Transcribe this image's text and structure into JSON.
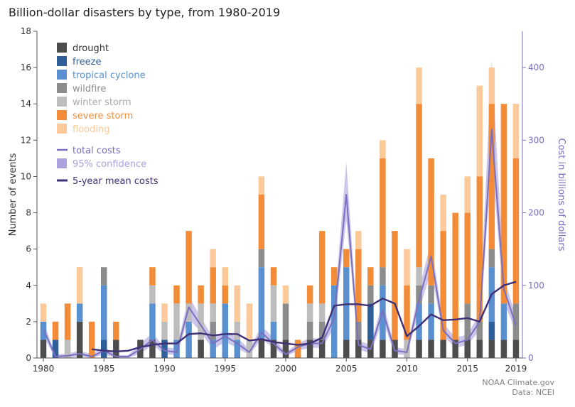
{
  "chart_data": {
    "type": "bar",
    "stacked": true,
    "title": "Billion-dollar disasters by type, from 1980-2019",
    "x_tick_labels": [
      "1980",
      "1985",
      "1990",
      "1995",
      "2000",
      "2005",
      "2010",
      "2015",
      "2019"
    ],
    "y_left": {
      "label": "Number of events",
      "range": [
        0,
        18
      ],
      "ticks": [
        "0",
        "2",
        "4",
        "6",
        "8",
        "10",
        "12",
        "14",
        "16",
        "18"
      ]
    },
    "y_right": {
      "label": "Cost in billions of dollars",
      "range": [
        0,
        450
      ],
      "ticks": [
        "0",
        "100",
        "200",
        "300",
        "400"
      ]
    },
    "legend_position": "top-left",
    "grid": false,
    "years": [
      1980,
      1981,
      1982,
      1983,
      1984,
      1985,
      1986,
      1987,
      1988,
      1989,
      1990,
      1991,
      1992,
      1993,
      1994,
      1995,
      1996,
      1997,
      1998,
      1999,
      2000,
      2001,
      2002,
      2003,
      2004,
      2005,
      2006,
      2007,
      2008,
      2009,
      2010,
      2011,
      2012,
      2013,
      2014,
      2015,
      2016,
      2017,
      2018,
      2019
    ],
    "series": [
      {
        "name": "drought",
        "color": "#4d4d4d",
        "values": [
          1,
          0,
          0,
          2,
          0,
          0,
          1,
          0,
          1,
          1,
          0,
          0,
          0,
          1,
          0,
          0,
          0,
          0,
          1,
          1,
          1,
          0,
          1,
          1,
          0,
          1,
          1,
          1,
          1,
          1,
          0,
          1,
          1,
          1,
          1,
          1,
          1,
          1,
          1,
          1
        ]
      },
      {
        "name": "freeze",
        "color": "#2e5f99",
        "values": [
          0,
          1,
          0,
          0,
          0,
          1,
          0,
          0,
          0,
          0,
          1,
          0,
          0,
          0,
          0,
          0,
          0,
          0,
          0,
          0,
          0,
          0,
          0,
          0,
          0,
          0,
          0,
          2,
          0,
          0,
          0,
          0,
          0,
          0,
          0,
          0,
          0,
          1,
          0,
          0
        ]
      },
      {
        "name": "tropical cyclone",
        "color": "#5a90cf",
        "values": [
          1,
          0,
          0,
          1,
          0,
          3,
          0,
          0,
          0,
          2,
          0,
          1,
          2,
          0,
          1,
          3,
          1,
          0,
          4,
          1,
          0,
          0,
          0,
          0,
          4,
          4,
          0,
          0,
          3,
          0,
          0,
          2,
          2,
          0,
          0,
          0,
          0,
          3,
          2,
          0
        ]
      },
      {
        "name": "wildfire",
        "color": "#8c8c8c",
        "values": [
          0,
          0,
          0,
          0,
          0,
          1,
          0,
          0,
          0,
          0,
          0,
          0,
          0,
          0,
          1,
          0,
          0,
          0,
          1,
          0,
          2,
          0,
          1,
          1,
          0,
          0,
          1,
          1,
          1,
          0,
          0,
          1,
          1,
          0,
          0,
          2,
          1,
          1,
          0,
          2
        ]
      },
      {
        "name": "winter storm",
        "color": "#bdbdbd",
        "values": [
          0,
          0,
          1,
          0,
          0,
          0,
          0,
          0,
          0,
          1,
          1,
          2,
          1,
          2,
          1,
          0,
          1,
          1,
          0,
          2,
          0,
          0,
          1,
          1,
          0,
          0,
          0,
          0,
          0,
          0,
          1,
          1,
          0,
          0,
          0,
          0,
          0,
          0,
          0,
          0
        ]
      },
      {
        "name": "severe storm",
        "color": "#f28c38",
        "values": [
          0,
          1,
          2,
          0,
          2,
          0,
          1,
          0,
          0,
          1,
          0,
          1,
          4,
          1,
          2,
          1,
          0,
          0,
          3,
          1,
          0,
          1,
          1,
          4,
          1,
          1,
          4,
          1,
          6,
          6,
          3,
          9,
          7,
          6,
          7,
          5,
          8,
          8,
          11,
          8
        ]
      },
      {
        "name": "flooding",
        "color": "#fbc99a",
        "values": [
          1,
          0,
          0,
          2,
          0,
          0,
          0,
          0,
          0,
          0,
          1,
          0,
          0,
          0,
          1,
          1,
          2,
          2,
          1,
          0,
          1,
          0,
          0,
          0,
          0,
          0,
          1,
          0,
          1,
          0,
          2,
          2,
          0,
          2,
          0,
          2,
          5,
          2,
          0,
          3
        ]
      }
    ],
    "line_series": [
      {
        "name": "total costs",
        "color": "#7a6fbf",
        "values": [
          40,
          2,
          3,
          6,
          2,
          10,
          2,
          2,
          12,
          25,
          10,
          8,
          70,
          45,
          20,
          30,
          20,
          8,
          35,
          20,
          5,
          15,
          20,
          20,
          55,
          225,
          18,
          12,
          65,
          10,
          8,
          80,
          140,
          38,
          20,
          25,
          50,
          315,
          95,
          45
        ]
      },
      {
        "name": "95% confidence",
        "color": "#aaa2dc",
        "lower": [
          30,
          0,
          0,
          2,
          0,
          5,
          0,
          0,
          6,
          18,
          5,
          4,
          55,
          35,
          12,
          22,
          14,
          4,
          26,
          14,
          2,
          10,
          14,
          14,
          42,
          190,
          12,
          6,
          52,
          5,
          4,
          65,
          120,
          30,
          14,
          18,
          38,
          270,
          78,
          35
        ],
        "upper": [
          50,
          5,
          6,
          10,
          5,
          16,
          4,
          4,
          20,
          34,
          15,
          13,
          85,
          56,
          28,
          38,
          28,
          12,
          44,
          28,
          8,
          20,
          28,
          26,
          68,
          270,
          24,
          18,
          78,
          15,
          12,
          95,
          160,
          48,
          28,
          32,
          62,
          410,
          112,
          55
        ]
      },
      {
        "name": "5-year mean costs",
        "color": "#3f2f76",
        "start_year": 1984,
        "values": [
          12,
          10,
          9,
          10,
          15,
          18,
          20,
          20,
          33,
          34,
          31,
          33,
          33,
          24,
          26,
          22,
          20,
          18,
          20,
          28,
          72,
          74,
          74,
          72,
          82,
          75,
          30,
          44,
          60,
          52,
          53,
          55,
          50,
          88,
          100,
          105
        ]
      }
    ]
  },
  "credits": {
    "line1": "NOAA Climate.gov",
    "line2": "Data: NCEI"
  }
}
